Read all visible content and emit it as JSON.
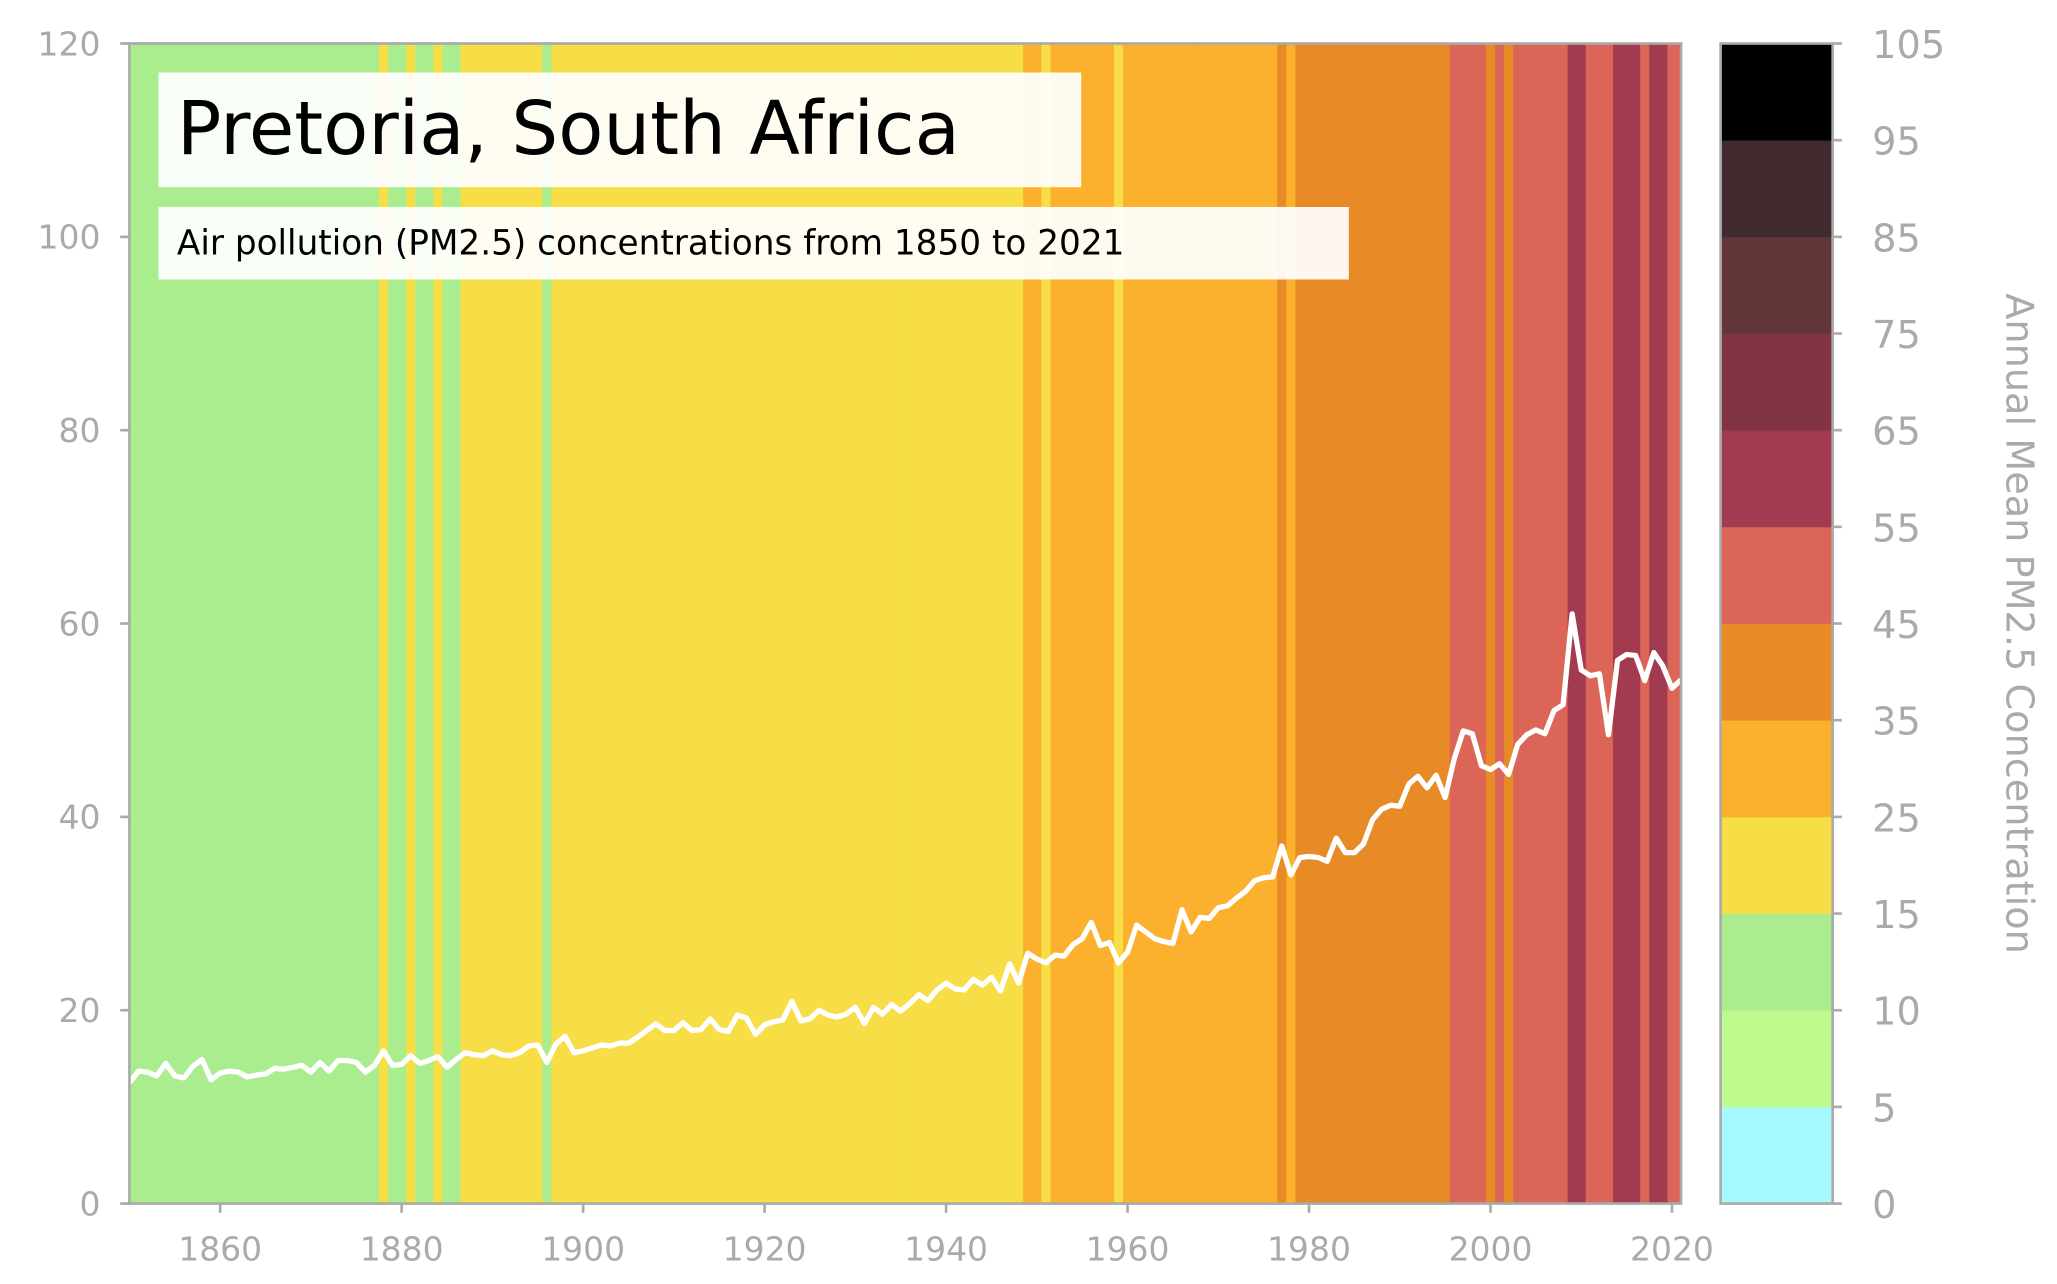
{
  "chart_data": {
    "type": "stripes-line",
    "title": "Pretoria, South Africa",
    "subtitle": "Air pollution (PM2.5) concentrations from 1850 to 2021",
    "x": [
      1850,
      1851,
      1852,
      1853,
      1854,
      1855,
      1856,
      1857,
      1858,
      1859,
      1860,
      1861,
      1862,
      1863,
      1864,
      1865,
      1866,
      1867,
      1868,
      1869,
      1870,
      1871,
      1872,
      1873,
      1874,
      1875,
      1876,
      1877,
      1878,
      1879,
      1880,
      1881,
      1882,
      1883,
      1884,
      1885,
      1886,
      1887,
      1888,
      1889,
      1890,
      1891,
      1892,
      1893,
      1894,
      1895,
      1896,
      1897,
      1898,
      1899,
      1900,
      1901,
      1902,
      1903,
      1904,
      1905,
      1906,
      1907,
      1908,
      1909,
      1910,
      1911,
      1912,
      1913,
      1914,
      1915,
      1916,
      1917,
      1918,
      1919,
      1920,
      1921,
      1922,
      1923,
      1924,
      1925,
      1926,
      1927,
      1928,
      1929,
      1930,
      1931,
      1932,
      1933,
      1934,
      1935,
      1936,
      1937,
      1938,
      1939,
      1940,
      1941,
      1942,
      1943,
      1944,
      1945,
      1946,
      1947,
      1948,
      1949,
      1950,
      1951,
      1952,
      1953,
      1954,
      1955,
      1956,
      1957,
      1958,
      1959,
      1960,
      1961,
      1962,
      1963,
      1964,
      1965,
      1966,
      1967,
      1968,
      1969,
      1970,
      1971,
      1972,
      1973,
      1974,
      1975,
      1976,
      1977,
      1978,
      1979,
      1980,
      1981,
      1982,
      1983,
      1984,
      1985,
      1986,
      1987,
      1988,
      1989,
      1990,
      1991,
      1992,
      1993,
      1994,
      1995,
      1996,
      1997,
      1998,
      1999,
      2000,
      2001,
      2002,
      2003,
      2004,
      2005,
      2006,
      2007,
      2008,
      2009,
      2010,
      2011,
      2012,
      2013,
      2014,
      2015,
      2016,
      2017,
      2018,
      2019,
      2020,
      2021
    ],
    "values": [
      12.5,
      13.7,
      13.6,
      13.2,
      14.5,
      13.2,
      13.0,
      14.2,
      14.9,
      12.8,
      13.5,
      13.7,
      13.6,
      13.1,
      13.3,
      13.4,
      14.0,
      13.9,
      14.1,
      14.3,
      13.6,
      14.6,
      13.7,
      14.8,
      14.8,
      14.6,
      13.6,
      14.3,
      15.8,
      14.3,
      14.4,
      15.3,
      14.5,
      14.8,
      15.2,
      14.1,
      14.9,
      15.6,
      15.4,
      15.3,
      15.8,
      15.4,
      15.3,
      15.6,
      16.3,
      16.4,
      14.6,
      16.5,
      17.3,
      15.6,
      15.8,
      16.1,
      16.4,
      16.3,
      16.6,
      16.6,
      17.2,
      17.9,
      18.6,
      17.9,
      17.9,
      18.7,
      17.9,
      18.0,
      19.1,
      18.0,
      17.8,
      19.5,
      19.2,
      17.5,
      18.5,
      18.8,
      19.0,
      20.9,
      18.9,
      19.1,
      20.0,
      19.5,
      19.3,
      19.6,
      20.3,
      18.6,
      20.3,
      19.6,
      20.6,
      19.9,
      20.7,
      21.6,
      21.0,
      22.1,
      22.8,
      22.2,
      22.1,
      23.2,
      22.6,
      23.4,
      22.0,
      24.8,
      22.8,
      25.9,
      25.3,
      24.9,
      25.7,
      25.6,
      26.8,
      27.4,
      29.1,
      26.7,
      27.0,
      24.9,
      26.0,
      28.8,
      28.1,
      27.4,
      27.1,
      26.9,
      30.4,
      28.1,
      29.6,
      29.5,
      30.6,
      30.8,
      31.6,
      32.3,
      33.4,
      33.7,
      33.8,
      37.0,
      34.0,
      35.8,
      35.9,
      35.8,
      35.4,
      37.8,
      36.3,
      36.3,
      37.2,
      39.7,
      40.8,
      41.2,
      41.1,
      43.4,
      44.2,
      43.0,
      44.3,
      42.0,
      46.0,
      48.9,
      48.6,
      45.3,
      44.9,
      45.5,
      44.4,
      47.5,
      48.5,
      49.0,
      48.6,
      51.0,
      51.6,
      61.0,
      55.2,
      54.6,
      54.8,
      48.5,
      56.2,
      56.8,
      56.7,
      54.1,
      57.0,
      55.6,
      53.3,
      54.2
    ],
    "line_color": "#ffffff",
    "xlim": [
      1850,
      2021
    ],
    "xticks": [
      1860,
      1880,
      1900,
      1920,
      1940,
      1960,
      1980,
      2000,
      2020
    ],
    "ylim": [
      0,
      120
    ],
    "yticks": [
      0,
      20,
      40,
      60,
      80,
      100,
      120
    ],
    "colorbar": {
      "label": "Annual Mean PM2.5 Concentration",
      "bounds": [
        0,
        5,
        10,
        15,
        25,
        35,
        45,
        55,
        65,
        75,
        85,
        95,
        105
      ],
      "colors": [
        "#a6f9ff",
        "#befa8e",
        "#aaed8f",
        "#f7de46",
        "#fbb02e",
        "#e88a26",
        "#db6657",
        "#a23a50",
        "#823445",
        "#623639",
        "#412b2e",
        "#000000"
      ]
    }
  }
}
